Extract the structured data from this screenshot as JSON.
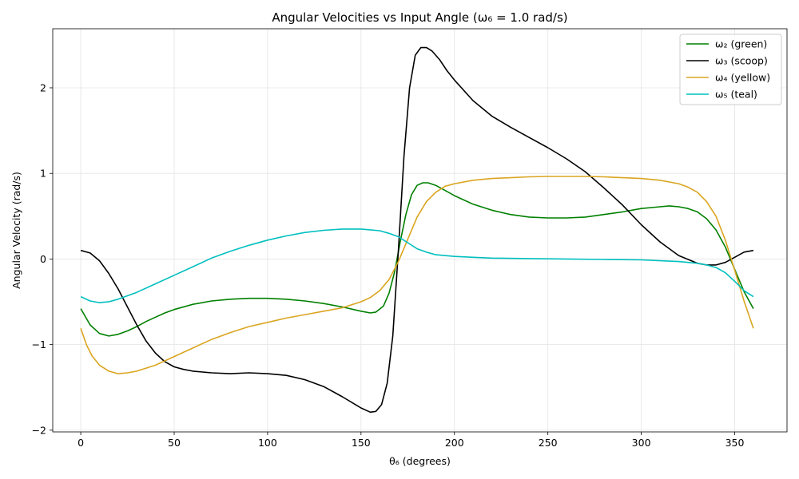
{
  "chart_data": {
    "type": "line",
    "title": "Angular Velocities vs Input Angle (ω₆ = 1.0 rad/s)",
    "xlabel": "θ₆ (degrees)",
    "ylabel": "Angular Velocity (rad/s)",
    "xlim": [
      -15,
      378
    ],
    "ylim": [
      -2.02,
      2.69
    ],
    "xticks": [
      0,
      50,
      100,
      150,
      200,
      250,
      300,
      350
    ],
    "yticks": [
      -2,
      -1,
      0,
      1,
      2
    ],
    "xtick_labels": [
      "0",
      "50",
      "100",
      "150",
      "200",
      "250",
      "300",
      "350"
    ],
    "ytick_labels": [
      "−2",
      "−1",
      "0",
      "1",
      "2"
    ],
    "grid": true,
    "legend_position": "top-right",
    "series": [
      {
        "name": "ω₂ (green)",
        "color": "#008000",
        "points": [
          [
            0,
            -0.58
          ],
          [
            5,
            -0.77
          ],
          [
            10,
            -0.87
          ],
          [
            15,
            -0.9
          ],
          [
            20,
            -0.88
          ],
          [
            25,
            -0.84
          ],
          [
            30,
            -0.79
          ],
          [
            35,
            -0.73
          ],
          [
            40,
            -0.68
          ],
          [
            45,
            -0.63
          ],
          [
            50,
            -0.59
          ],
          [
            60,
            -0.53
          ],
          [
            70,
            -0.49
          ],
          [
            80,
            -0.47
          ],
          [
            90,
            -0.46
          ],
          [
            100,
            -0.46
          ],
          [
            110,
            -0.47
          ],
          [
            120,
            -0.49
          ],
          [
            130,
            -0.52
          ],
          [
            140,
            -0.56
          ],
          [
            150,
            -0.61
          ],
          [
            155,
            -0.63
          ],
          [
            158,
            -0.62
          ],
          [
            162,
            -0.55
          ],
          [
            165,
            -0.4
          ],
          [
            168,
            -0.15
          ],
          [
            171,
            0.2
          ],
          [
            174,
            0.52
          ],
          [
            177,
            0.75
          ],
          [
            180,
            0.86
          ],
          [
            183,
            0.89
          ],
          [
            186,
            0.89
          ],
          [
            190,
            0.86
          ],
          [
            195,
            0.8
          ],
          [
            200,
            0.74
          ],
          [
            210,
            0.64
          ],
          [
            220,
            0.57
          ],
          [
            230,
            0.52
          ],
          [
            240,
            0.49
          ],
          [
            250,
            0.48
          ],
          [
            260,
            0.48
          ],
          [
            270,
            0.49
          ],
          [
            280,
            0.52
          ],
          [
            290,
            0.55
          ],
          [
            300,
            0.59
          ],
          [
            310,
            0.61
          ],
          [
            315,
            0.62
          ],
          [
            320,
            0.61
          ],
          [
            325,
            0.59
          ],
          [
            330,
            0.55
          ],
          [
            335,
            0.47
          ],
          [
            340,
            0.34
          ],
          [
            345,
            0.14
          ],
          [
            350,
            -0.12
          ],
          [
            355,
            -0.38
          ],
          [
            360,
            -0.58
          ]
        ]
      },
      {
        "name": "ω₃ (scoop)",
        "color": "#000000",
        "points": [
          [
            0,
            0.1
          ],
          [
            5,
            0.07
          ],
          [
            10,
            -0.02
          ],
          [
            15,
            -0.17
          ],
          [
            20,
            -0.35
          ],
          [
            25,
            -0.56
          ],
          [
            30,
            -0.77
          ],
          [
            35,
            -0.96
          ],
          [
            40,
            -1.1
          ],
          [
            45,
            -1.2
          ],
          [
            50,
            -1.26
          ],
          [
            55,
            -1.29
          ],
          [
            60,
            -1.31
          ],
          [
            70,
            -1.33
          ],
          [
            80,
            -1.34
          ],
          [
            90,
            -1.33
          ],
          [
            100,
            -1.34
          ],
          [
            110,
            -1.36
          ],
          [
            120,
            -1.41
          ],
          [
            130,
            -1.49
          ],
          [
            140,
            -1.61
          ],
          [
            150,
            -1.74
          ],
          [
            155,
            -1.79
          ],
          [
            158,
            -1.78
          ],
          [
            161,
            -1.7
          ],
          [
            164,
            -1.45
          ],
          [
            167,
            -0.9
          ],
          [
            170,
            0.1
          ],
          [
            173,
            1.2
          ],
          [
            176,
            2.0
          ],
          [
            179,
            2.38
          ],
          [
            182,
            2.47
          ],
          [
            185,
            2.47
          ],
          [
            188,
            2.43
          ],
          [
            192,
            2.33
          ],
          [
            196,
            2.2
          ],
          [
            200,
            2.09
          ],
          [
            210,
            1.85
          ],
          [
            220,
            1.67
          ],
          [
            230,
            1.54
          ],
          [
            240,
            1.42
          ],
          [
            250,
            1.3
          ],
          [
            260,
            1.17
          ],
          [
            270,
            1.02
          ],
          [
            280,
            0.83
          ],
          [
            290,
            0.63
          ],
          [
            300,
            0.4
          ],
          [
            310,
            0.2
          ],
          [
            320,
            0.04
          ],
          [
            330,
            -0.05
          ],
          [
            335,
            -0.07
          ],
          [
            340,
            -0.07
          ],
          [
            345,
            -0.04
          ],
          [
            350,
            0.02
          ],
          [
            355,
            0.08
          ],
          [
            360,
            0.1
          ]
        ]
      },
      {
        "name": "ω₄ (yellow)",
        "color": "#daa520",
        "points": [
          [
            0,
            -0.81
          ],
          [
            3,
            -1.0
          ],
          [
            6,
            -1.13
          ],
          [
            10,
            -1.24
          ],
          [
            15,
            -1.31
          ],
          [
            20,
            -1.34
          ],
          [
            25,
            -1.33
          ],
          [
            30,
            -1.31
          ],
          [
            40,
            -1.24
          ],
          [
            50,
            -1.14
          ],
          [
            60,
            -1.04
          ],
          [
            70,
            -0.94
          ],
          [
            80,
            -0.86
          ],
          [
            90,
            -0.79
          ],
          [
            100,
            -0.74
          ],
          [
            110,
            -0.69
          ],
          [
            120,
            -0.65
          ],
          [
            130,
            -0.61
          ],
          [
            140,
            -0.57
          ],
          [
            150,
            -0.5
          ],
          [
            155,
            -0.45
          ],
          [
            160,
            -0.37
          ],
          [
            165,
            -0.24
          ],
          [
            170,
            -0.03
          ],
          [
            175,
            0.23
          ],
          [
            180,
            0.49
          ],
          [
            185,
            0.67
          ],
          [
            190,
            0.78
          ],
          [
            195,
            0.85
          ],
          [
            200,
            0.88
          ],
          [
            210,
            0.92
          ],
          [
            220,
            0.94
          ],
          [
            230,
            0.95
          ],
          [
            240,
            0.96
          ],
          [
            250,
            0.965
          ],
          [
            260,
            0.965
          ],
          [
            270,
            0.965
          ],
          [
            280,
            0.96
          ],
          [
            290,
            0.95
          ],
          [
            300,
            0.94
          ],
          [
            310,
            0.92
          ],
          [
            320,
            0.88
          ],
          [
            325,
            0.84
          ],
          [
            330,
            0.78
          ],
          [
            335,
            0.67
          ],
          [
            340,
            0.5
          ],
          [
            345,
            0.22
          ],
          [
            350,
            -0.13
          ],
          [
            355,
            -0.49
          ],
          [
            360,
            -0.81
          ]
        ]
      },
      {
        "name": "ω₅ (teal)",
        "color": "#00bfbf",
        "points": [
          [
            0,
            -0.44
          ],
          [
            5,
            -0.49
          ],
          [
            10,
            -0.51
          ],
          [
            15,
            -0.5
          ],
          [
            20,
            -0.47
          ],
          [
            30,
            -0.39
          ],
          [
            40,
            -0.29
          ],
          [
            50,
            -0.19
          ],
          [
            60,
            -0.09
          ],
          [
            70,
            0.01
          ],
          [
            80,
            0.09
          ],
          [
            90,
            0.16
          ],
          [
            100,
            0.22
          ],
          [
            110,
            0.27
          ],
          [
            120,
            0.31
          ],
          [
            130,
            0.335
          ],
          [
            140,
            0.35
          ],
          [
            150,
            0.35
          ],
          [
            160,
            0.33
          ],
          [
            165,
            0.3
          ],
          [
            170,
            0.26
          ],
          [
            175,
            0.19
          ],
          [
            180,
            0.12
          ],
          [
            185,
            0.08
          ],
          [
            190,
            0.05
          ],
          [
            200,
            0.03
          ],
          [
            210,
            0.02
          ],
          [
            220,
            0.01
          ],
          [
            240,
            0.005
          ],
          [
            260,
            0.0
          ],
          [
            280,
            -0.005
          ],
          [
            300,
            -0.01
          ],
          [
            310,
            -0.02
          ],
          [
            320,
            -0.03
          ],
          [
            330,
            -0.05
          ],
          [
            335,
            -0.07
          ],
          [
            340,
            -0.1
          ],
          [
            345,
            -0.16
          ],
          [
            350,
            -0.26
          ],
          [
            355,
            -0.37
          ],
          [
            360,
            -0.44
          ]
        ]
      }
    ]
  }
}
